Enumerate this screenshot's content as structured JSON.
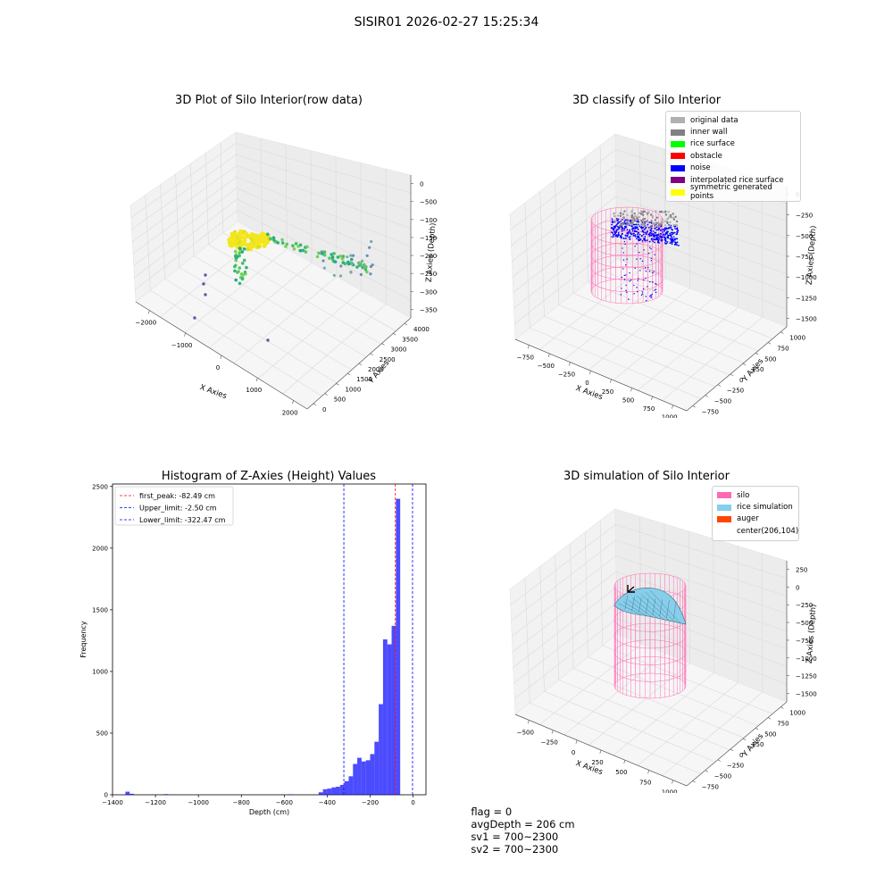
{
  "suptitle": "SISIR01 2026-02-27 15:25:34",
  "colors": {
    "original": "#b0b0b0",
    "inner_wall": "#808080",
    "rice_surface": "#00ff00",
    "obstacle": "#ff0000",
    "noise": "#0000ff",
    "interpolated": "#800080",
    "symmetric": "#ffff00",
    "silo": "#ff69b4",
    "rice_sim": "#87ceeb",
    "auger": "#ff4500",
    "hist": "#0000ff"
  },
  "chart_data": [
    {
      "type": "scatter",
      "title": "3D Plot of Silo Interior(row data)",
      "xlabel": "X Axies",
      "ylabel": "Y Axies",
      "zlabel": "Z Axies (Depth)",
      "xticks": [
        "−2000",
        "−1000",
        "0",
        "1000",
        "2000"
      ],
      "yticks": [
        "0",
        "500",
        "1000",
        "1500",
        "2000",
        "2500",
        "3000",
        "3500",
        "4000"
      ],
      "zticks": [
        "0",
        "−500",
        "−1000",
        "−1500",
        "−2000",
        "−2500",
        "−3000",
        "−3500"
      ]
    },
    {
      "type": "scatter",
      "title": "3D classify of Silo Interior",
      "xlabel": "X Axies",
      "ylabel": "Y Axies",
      "zlabel": "Z Axies (Depth)",
      "xticks": [
        "−750",
        "−500",
        "−250",
        "0",
        "250",
        "500",
        "750",
        "1000"
      ],
      "yticks": [
        "−750",
        "−500",
        "−250",
        "0",
        "250",
        "500",
        "750",
        "1000"
      ],
      "zticks": [
        "0",
        "−250",
        "−500",
        "−750",
        "−1000",
        "−1250",
        "−1500"
      ],
      "legend": [
        "original data",
        "inner wall",
        "rice surface",
        "obstacle",
        "noise",
        "interpolated rice surface",
        "symmetric generated points"
      ]
    },
    {
      "type": "bar",
      "title": "Histogram of Z-Axies (Height) Values",
      "xlabel": "Depth (cm)",
      "ylabel": "Frequency",
      "xlim": [
        -1400,
        60
      ],
      "ylim": [
        0,
        2520
      ],
      "xticks": [
        -1400,
        -1200,
        -1000,
        -800,
        -600,
        -400,
        -200,
        0
      ],
      "xtick_labels": [
        "−1400",
        "−1200",
        "−1000",
        "−800",
        "−600",
        "−400",
        "−200",
        "0"
      ],
      "yticks": [
        0,
        500,
        1000,
        1500,
        2000,
        2500
      ],
      "bin_width": 20,
      "bins": [
        {
          "x": -1340,
          "v": 25
        },
        {
          "x": -1320,
          "v": 8
        },
        {
          "x": -1160,
          "v": 5
        },
        {
          "x": -580,
          "v": 4
        },
        {
          "x": -440,
          "v": 20
        },
        {
          "x": -420,
          "v": 45
        },
        {
          "x": -400,
          "v": 50
        },
        {
          "x": -380,
          "v": 60
        },
        {
          "x": -360,
          "v": 65
        },
        {
          "x": -340,
          "v": 80
        },
        {
          "x": -320,
          "v": 110
        },
        {
          "x": -300,
          "v": 150
        },
        {
          "x": -280,
          "v": 250
        },
        {
          "x": -260,
          "v": 300
        },
        {
          "x": -240,
          "v": 270
        },
        {
          "x": -220,
          "v": 280
        },
        {
          "x": -200,
          "v": 330
        },
        {
          "x": -180,
          "v": 430
        },
        {
          "x": -160,
          "v": 735
        },
        {
          "x": -140,
          "v": 1260
        },
        {
          "x": -120,
          "v": 1220
        },
        {
          "x": -100,
          "v": 1370
        },
        {
          "x": -80,
          "v": 2400
        }
      ],
      "lines": [
        {
          "label": "first_peak: -82.49 cm",
          "x": -82.49,
          "color": "#ff0000"
        },
        {
          "label": "Upper_limit: -2.50 cm",
          "x": -2.5,
          "color": "#0000ff"
        },
        {
          "label": "Lower_limit: -322.47 cm",
          "x": -322.47,
          "color": "#0000ff"
        }
      ]
    },
    {
      "type": "area",
      "title": "3D simulation of Silo Interior",
      "xlabel": "X Axies",
      "ylabel": "Y Axies",
      "zlabel": "Z Axies (Depth)",
      "xticks": [
        "−500",
        "−250",
        "0",
        "250",
        "500",
        "750",
        "1000"
      ],
      "yticks": [
        "−750",
        "−500",
        "−250",
        "0",
        "250",
        "500",
        "750",
        "1000"
      ],
      "zticks": [
        "250",
        "0",
        "−250",
        "−500",
        "−750",
        "−1000",
        "−1250",
        "−1500"
      ],
      "legend": [
        "silo",
        "rice simulation",
        "auger",
        "center(206,104)"
      ]
    }
  ],
  "status": {
    "flag": "flag = 0",
    "avg": "avgDepth = 206 cm",
    "sv1": "sv1 = 700~2300",
    "sv2": "sv2 = 700~2300"
  }
}
